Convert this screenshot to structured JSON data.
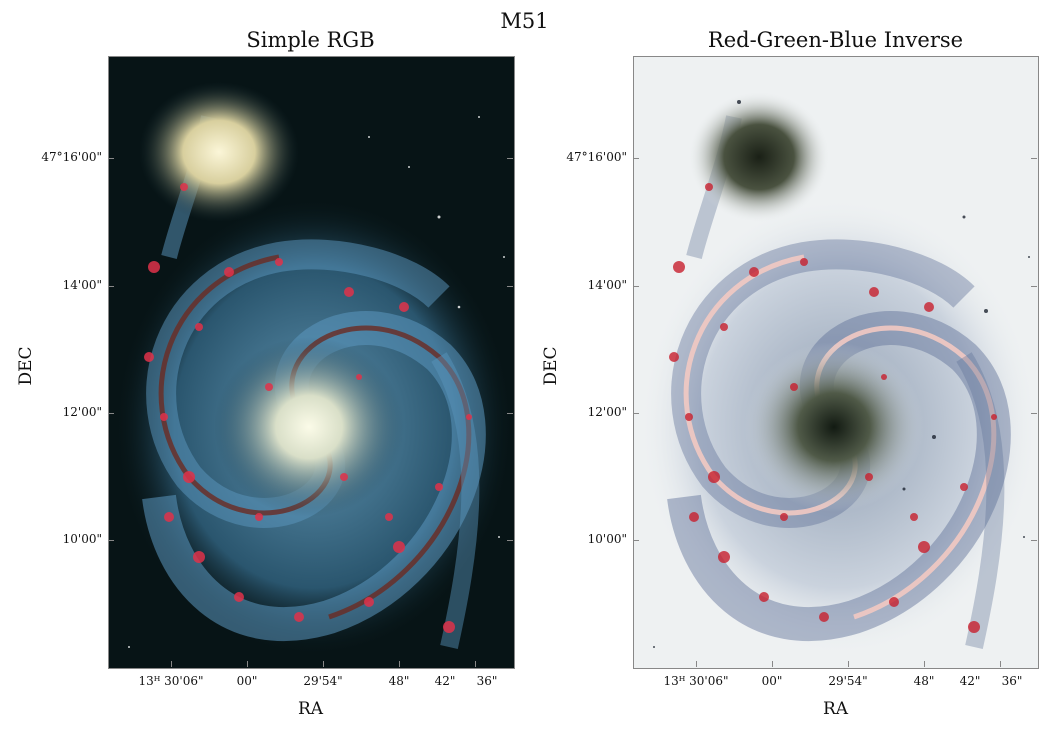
{
  "figure": {
    "title": "M51",
    "panels": [
      {
        "title": "Simple RGB",
        "xlabel": "RA",
        "ylabel": "DEC",
        "xticks": [
          "13ᴴ 30'06\"",
          "00\"",
          "29'54\"",
          "48\"",
          "42\"",
          "36\""
        ],
        "yticks": [
          "47°16'00\"",
          "14'00\"",
          "12'00\"",
          "10'00\""
        ],
        "image": "galaxy-rgb"
      },
      {
        "title": "Red-Green-Blue Inverse",
        "xlabel": "RA",
        "ylabel": "DEC",
        "xticks": [
          "13ᴴ 30'06\"",
          "00\"",
          "29'54\"",
          "48\"",
          "42\"",
          "36\""
        ],
        "yticks": [
          "47°16'00\"",
          "14'00\"",
          "12'00\"",
          "10'00\""
        ],
        "image": "galaxy-rgb-inverse"
      }
    ]
  },
  "colors": {
    "space": "#071416",
    "space_inverse": "#eef1f2",
    "arm_blue": "#5b97bf",
    "hii_red": "#e0324a"
  }
}
